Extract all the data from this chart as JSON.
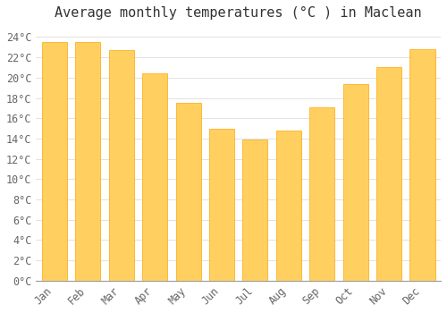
{
  "title": "Average monthly temperatures (°C ) in Maclean",
  "months": [
    "Jan",
    "Feb",
    "Mar",
    "Apr",
    "May",
    "Jun",
    "Jul",
    "Aug",
    "Sep",
    "Oct",
    "Nov",
    "Dec"
  ],
  "values": [
    23.5,
    23.5,
    22.7,
    20.4,
    17.5,
    15.0,
    13.9,
    14.8,
    17.1,
    19.4,
    21.0,
    22.8
  ],
  "bar_color_main": "#FFA500",
  "bar_color_light": "#FFD060",
  "background_color": "#FFFFFF",
  "grid_color": "#DDDDDD",
  "title_color": "#333333",
  "tick_color": "#666666",
  "ylim": [
    0,
    25
  ],
  "ytick_values": [
    0,
    2,
    4,
    6,
    8,
    10,
    12,
    14,
    16,
    18,
    20,
    22,
    24
  ],
  "title_fontsize": 11,
  "tick_fontsize": 8.5,
  "bar_width": 0.75
}
